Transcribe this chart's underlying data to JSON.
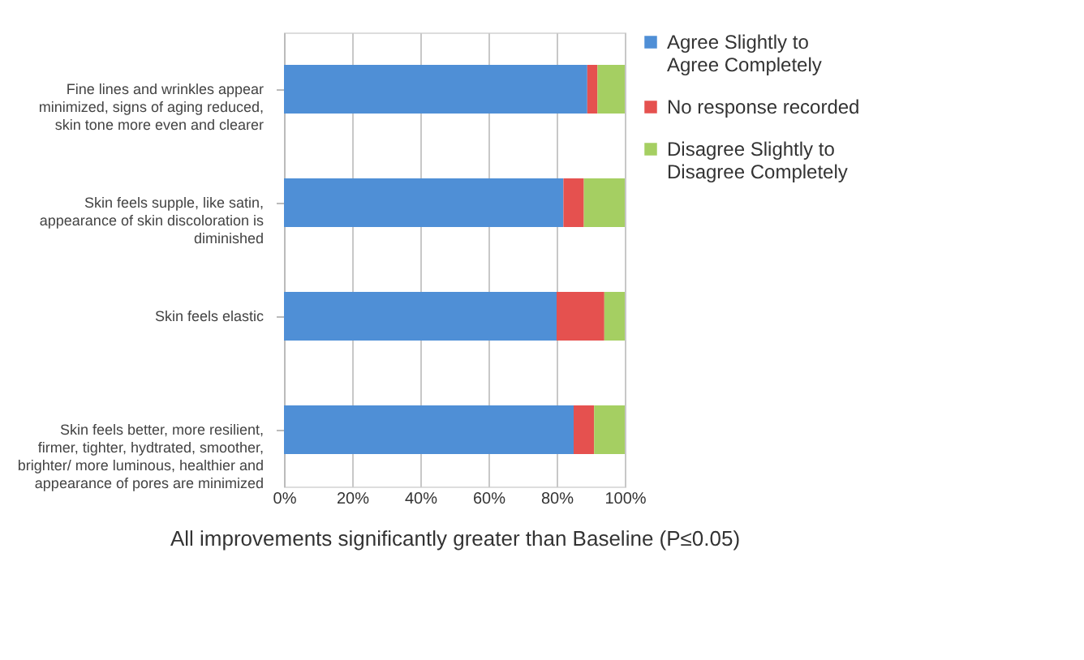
{
  "chart_data": {
    "type": "bar",
    "orientation": "horizontal",
    "stacked": true,
    "xlabel": "All improvements significantly greater than Baseline (P≤0.05)",
    "categories": [
      "Fine lines and wrinkles appear minimized, signs of aging reduced, skin tone more even and clearer",
      "Skin feels supple, like satin, appearance of skin discoloration is diminished",
      "Skin feels elastic",
      "Skin feels better, more resilient, firmer, tighter, hydtrated, smoother, brighter/ more luminous, healthier and appearance of pores are minimized"
    ],
    "series": [
      {
        "name": "Agree Slightly to Agree Completely",
        "color": "#4f8fd6",
        "values": [
          89,
          82,
          80,
          85
        ]
      },
      {
        "name": "No response recorded",
        "color": "#e5514f",
        "values": [
          3,
          6,
          14,
          6
        ]
      },
      {
        "name": "Disagree Slightly to Disagree Completely",
        "color": "#a5cf62",
        "values": [
          8,
          12,
          6,
          9
        ]
      }
    ],
    "xlim": [
      0,
      100
    ],
    "xticks": [
      {
        "value": 0,
        "label": "0%"
      },
      {
        "value": 20,
        "label": "20%"
      },
      {
        "value": 40,
        "label": "40%"
      },
      {
        "value": 60,
        "label": "60%"
      },
      {
        "value": 80,
        "label": "80%"
      },
      {
        "value": 100,
        "label": "100%"
      }
    ],
    "grid": "x",
    "legend": "right"
  }
}
